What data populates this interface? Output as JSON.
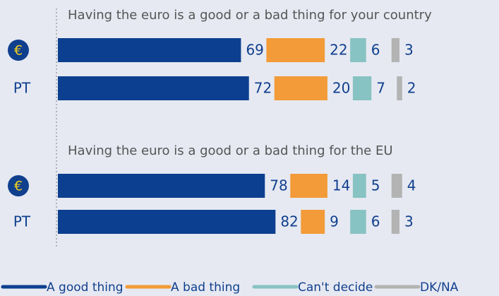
{
  "colors": {
    "background": "#e6e9f2",
    "good": "#0c3f8f",
    "bad": "#f29b38",
    "cant_decide": "#87c3c2",
    "dknA": "#b3b3b3",
    "label_text": "#103f8e",
    "title_text": "#555555",
    "euro_icon_bg": "#103f8e",
    "euro_icon_fg": "#f2d21b"
  },
  "chart_data": {
    "type": "bar",
    "stacked": true,
    "orientation": "horizontal",
    "value_unit": "%",
    "legend_position": "bottom",
    "series": [
      {
        "name": "A good thing",
        "color": "#0c3f8f"
      },
      {
        "name": "A bad thing",
        "color": "#f29b38"
      },
      {
        "name": "Can't decide",
        "color": "#87c3c2"
      },
      {
        "name": "DK/NA",
        "color": "#b3b3b3"
      }
    ],
    "groups": [
      {
        "title": "Having the euro is a good or a bad thing for your country",
        "rows": [
          {
            "label": "€",
            "label_type": "euro-icon",
            "values": [
              69,
              22,
              6,
              3
            ]
          },
          {
            "label": "PT",
            "label_type": "text",
            "values": [
              72,
              20,
              7,
              2
            ]
          }
        ]
      },
      {
        "title": "Having the euro is a good or a bad thing for the EU",
        "rows": [
          {
            "label": "€",
            "label_type": "euro-icon",
            "values": [
              78,
              14,
              5,
              4
            ]
          },
          {
            "label": "PT",
            "label_type": "text",
            "values": [
              82,
              9,
              6,
              3
            ]
          }
        ]
      }
    ]
  }
}
